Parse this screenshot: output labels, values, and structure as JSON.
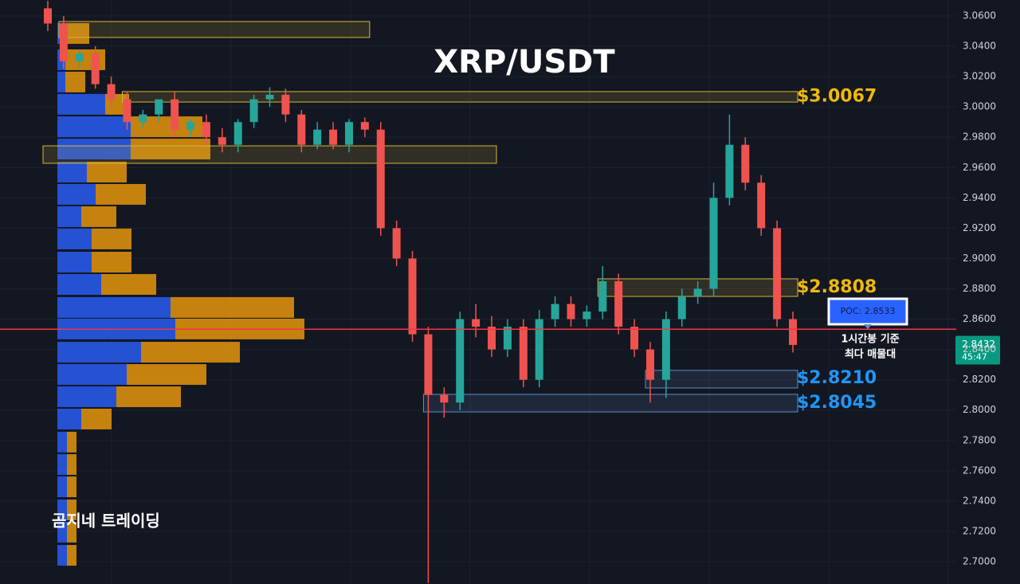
{
  "chart_data": {
    "type": "candlestick",
    "title": "XRP/USDT",
    "ylim": [
      2.6853,
      3.0705
    ],
    "yticks": [
      {
        "value": 2.7,
        "label": "2.7000"
      },
      {
        "value": 2.72,
        "label": "2.7200"
      },
      {
        "value": 2.74,
        "label": "2.7400"
      },
      {
        "value": 2.76,
        "label": "2.7600"
      },
      {
        "value": 2.78,
        "label": "2.7800"
      },
      {
        "value": 2.8,
        "label": "2.8000"
      },
      {
        "value": 2.82,
        "label": "2.8200"
      },
      {
        "value": 2.84,
        "label": "2.8400"
      },
      {
        "value": 2.86,
        "label": "2.8600"
      },
      {
        "value": 2.88,
        "label": "2.8800"
      },
      {
        "value": 2.9,
        "label": "2.9000"
      },
      {
        "value": 2.92,
        "label": "2.9200"
      },
      {
        "value": 2.94,
        "label": "2.9400"
      },
      {
        "value": 2.96,
        "label": "2.9600"
      },
      {
        "value": 2.98,
        "label": "2.9800"
      },
      {
        "value": 3.0,
        "label": "3.0000"
      },
      {
        "value": 3.02,
        "label": "3.0200"
      },
      {
        "value": 3.04,
        "label": "3.0400"
      },
      {
        "value": 3.06,
        "label": "3.0600"
      }
    ],
    "grid": true,
    "up_color": "#26a69a",
    "down_color": "#ef5350",
    "open": [
      3.065,
      3.055,
      3.03,
      3.035,
      3.015,
      3.005,
      2.99,
      2.995,
      3.005,
      2.985,
      2.99,
      2.98,
      2.975,
      2.99,
      3.005,
      3.008,
      2.995,
      2.975,
      2.985,
      2.975,
      2.99,
      2.985,
      2.92,
      2.9,
      2.85,
      2.81,
      2.805,
      2.86,
      2.855,
      2.84,
      2.855,
      2.82,
      2.86,
      2.87,
      2.86,
      2.865,
      2.885,
      2.855,
      2.84,
      2.82,
      2.86,
      2.875,
      2.88,
      2.94,
      2.975,
      2.95,
      2.92,
      2.86
    ],
    "high": [
      3.07,
      3.06,
      3.038,
      3.04,
      3.02,
      3.01,
      2.998,
      3.002,
      3.01,
      2.992,
      2.995,
      2.986,
      2.992,
      3.008,
      3.013,
      3.012,
      2.998,
      2.99,
      2.99,
      2.992,
      2.993,
      2.99,
      2.925,
      2.905,
      2.855,
      2.815,
      2.865,
      2.87,
      2.862,
      2.86,
      2.86,
      2.866,
      2.875,
      2.875,
      2.869,
      2.895,
      2.89,
      2.86,
      2.845,
      2.865,
      2.88,
      2.885,
      2.95,
      2.995,
      2.98,
      2.955,
      2.925,
      2.865
    ],
    "low": [
      3.05,
      3.025,
      3.026,
      3.012,
      3.0,
      2.985,
      2.986,
      2.99,
      2.98,
      2.98,
      2.975,
      2.97,
      2.97,
      2.986,
      3.0,
      2.99,
      2.97,
      2.972,
      2.972,
      2.97,
      2.98,
      2.915,
      2.895,
      2.845,
      2.686,
      2.795,
      2.8,
      2.848,
      2.835,
      2.835,
      2.815,
      2.815,
      2.855,
      2.855,
      2.855,
      2.86,
      2.85,
      2.835,
      2.805,
      2.808,
      2.855,
      2.87,
      2.875,
      2.935,
      2.945,
      2.915,
      2.855,
      2.838
    ],
    "close": [
      3.055,
      3.03,
      3.035,
      3.015,
      3.005,
      2.99,
      2.995,
      3.005,
      2.985,
      2.99,
      2.98,
      2.975,
      2.99,
      3.005,
      3.008,
      2.995,
      2.975,
      2.985,
      2.975,
      2.99,
      2.985,
      2.92,
      2.9,
      2.85,
      2.81,
      2.805,
      2.86,
      2.855,
      2.84,
      2.855,
      2.82,
      2.86,
      2.87,
      2.86,
      2.865,
      2.885,
      2.855,
      2.84,
      2.82,
      2.86,
      2.875,
      2.88,
      2.94,
      2.975,
      2.95,
      2.92,
      2.86,
      2.843
    ],
    "volume_profile": {
      "buy_color": "#2962ff",
      "sell_color": "#f29d0b",
      "prices": [
        3.0484,
        3.0311,
        3.0164,
        3.0017,
        2.9869,
        2.9722,
        2.957,
        2.9423,
        2.9276,
        2.9129,
        2.8976,
        2.8829,
        2.8677,
        2.8535,
        2.8382,
        2.8235,
        2.8088,
        2.7941,
        2.7789,
        2.7641,
        2.7494,
        2.7342,
        2.7195,
        2.7042
      ],
      "buy": [
        10,
        10,
        10,
        60,
        92,
        92,
        37,
        48,
        30,
        43,
        43,
        55,
        142,
        148,
        105,
        87,
        74,
        30,
        12,
        12,
        12,
        12,
        12,
        12
      ],
      "sell": [
        30,
        50,
        25,
        30,
        90,
        100,
        50,
        63,
        44,
        50,
        50,
        69,
        155,
        162,
        124,
        100,
        81,
        38,
        12,
        12,
        12,
        12,
        12,
        12
      ]
    },
    "zones": [
      {
        "high": 3.0563,
        "low": 3.0458,
        "from": 1,
        "to": 20,
        "color": "#d4b83a"
      },
      {
        "high": 2.9743,
        "low": 2.9628,
        "from": 0,
        "to": 28,
        "color": "#d4b83a"
      },
      {
        "high": 3.0101,
        "low": 3.0032,
        "from": 5,
        "to": 47,
        "color": "#d4b83a",
        "level": {
          "value": 3.0067,
          "label": "$3.0067"
        }
      },
      {
        "high": 2.8866,
        "low": 2.875,
        "from": 35,
        "to": 47,
        "color": "#d4b83a",
        "level": {
          "value": 2.8808,
          "label": "$2.8808"
        }
      },
      {
        "high": 2.8262,
        "low": 2.8146,
        "from": 38,
        "to": 47,
        "color": "#5b8fc9",
        "level": {
          "value": 2.821,
          "label": "$2.8210"
        }
      },
      {
        "high": 2.8104,
        "low": 2.7988,
        "from": 24,
        "to": 47,
        "color": "#5b8fc9",
        "level": {
          "value": 2.8045,
          "label": "$2.8045"
        }
      }
    ],
    "poc": {
      "value": 2.8533,
      "label": "POC: 2.8533",
      "color": "#f23645"
    },
    "poc_note": [
      "1시간봉 기준",
      "최다 매물대"
    ],
    "last_price": {
      "value": 2.8432,
      "label": "2.8432",
      "countdown": "45:47"
    },
    "watermark": "곰지네 트레이딩"
  }
}
